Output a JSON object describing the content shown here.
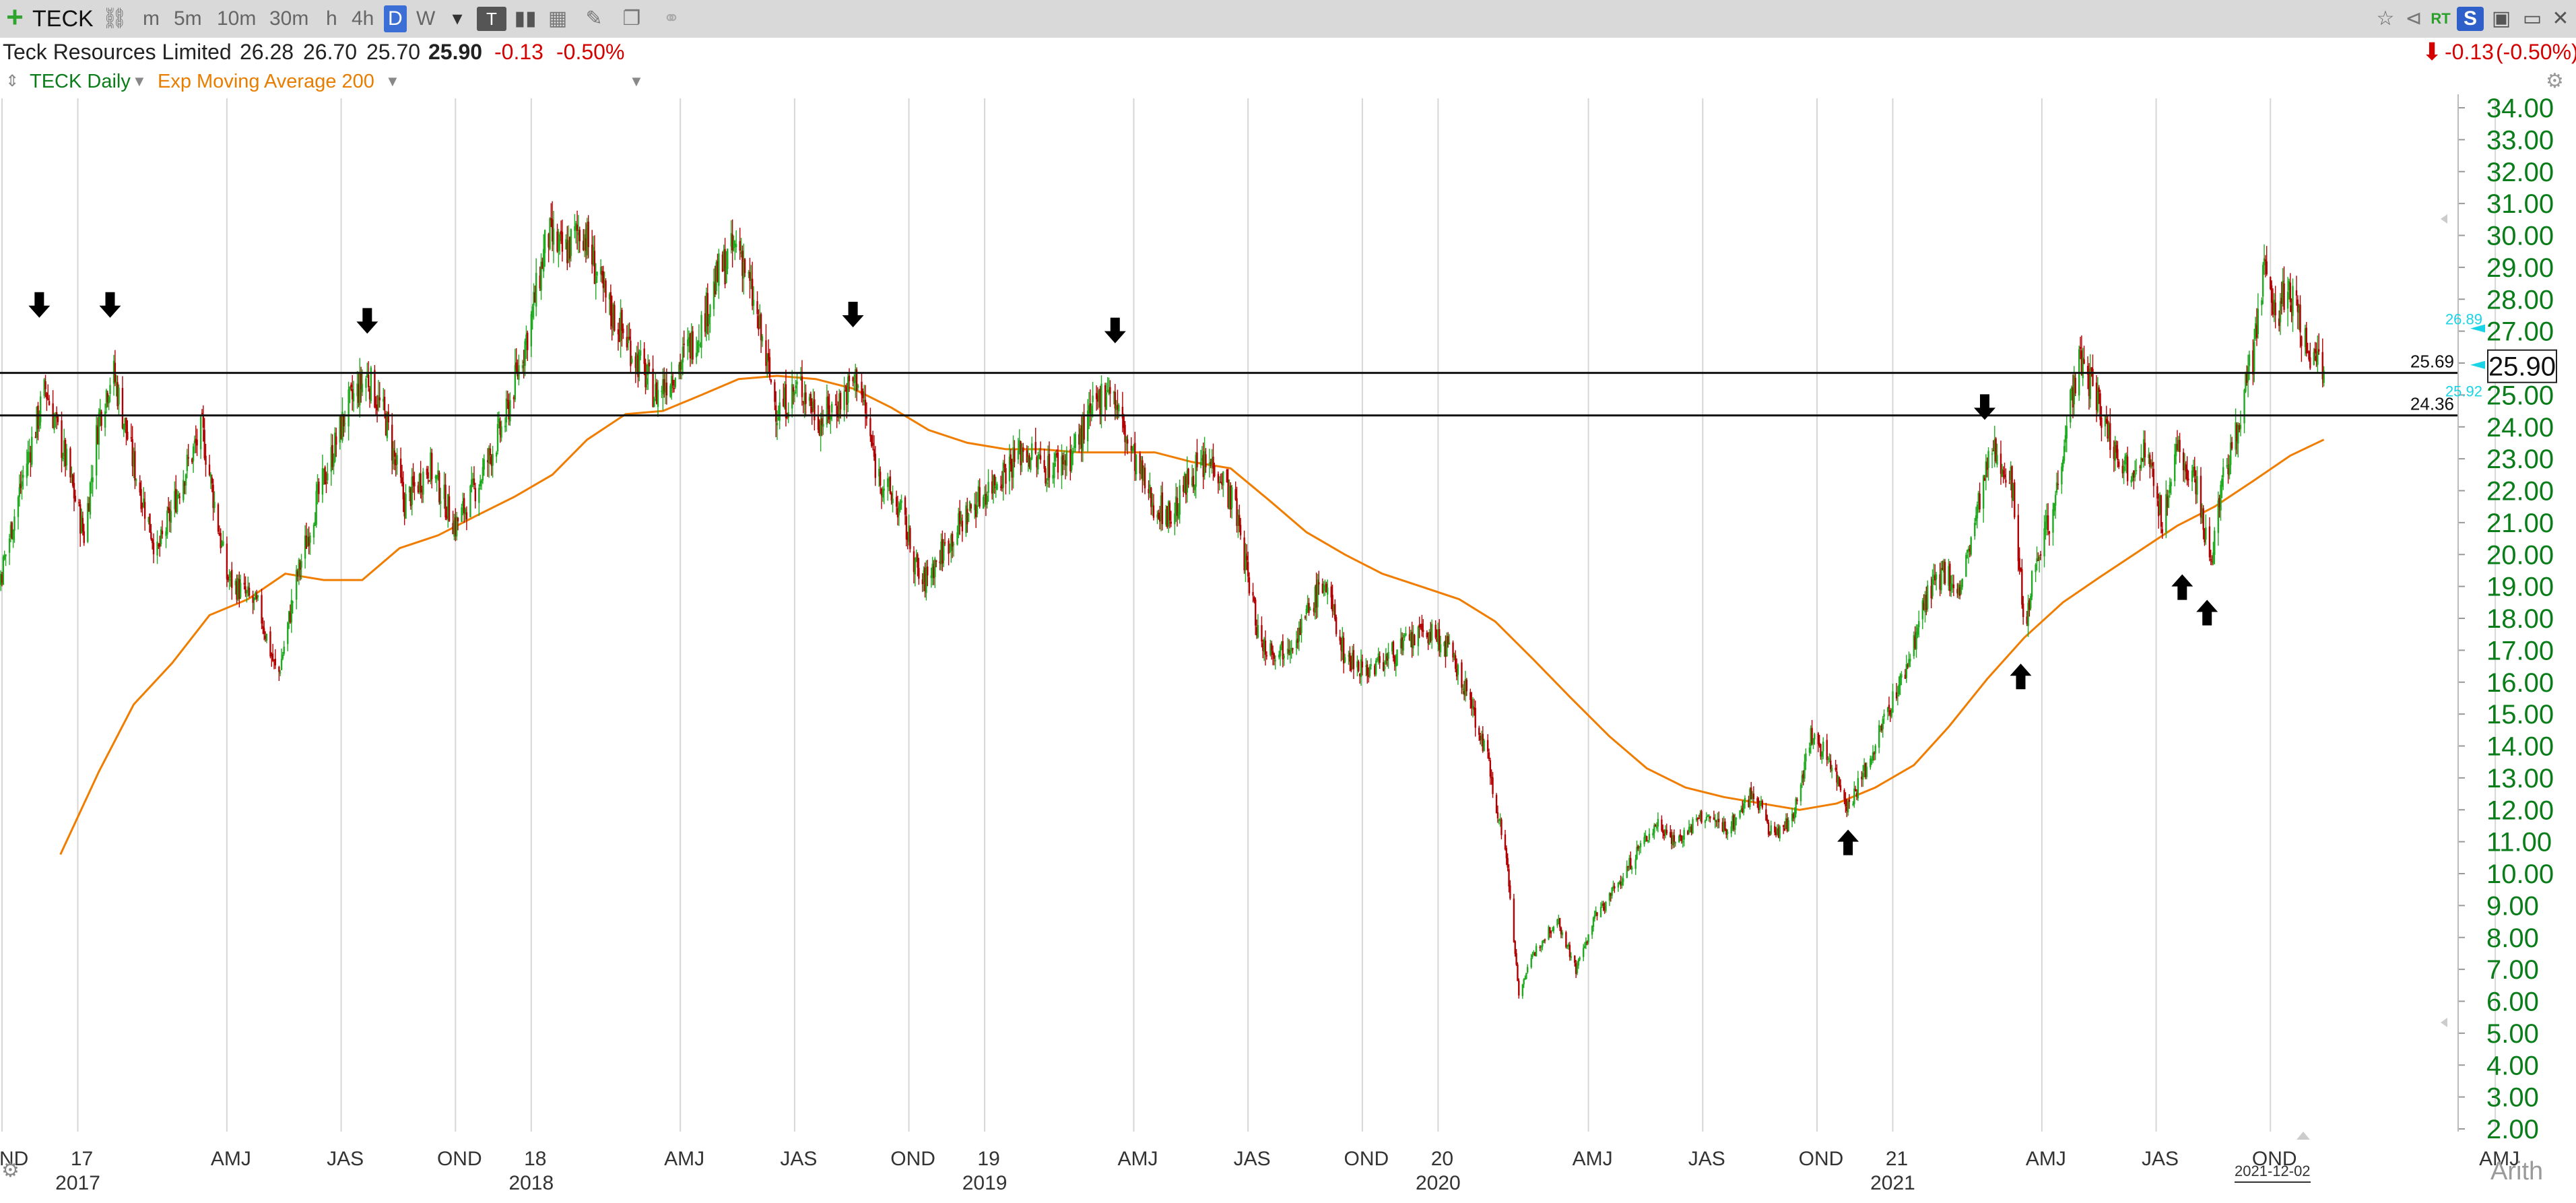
{
  "toolbar": {
    "symbol": "TECK",
    "intervals": [
      "m",
      "5m",
      "10m",
      "30m",
      "h",
      "4h",
      "D",
      "W"
    ],
    "active_interval": "D",
    "rt_label": "RT",
    "s_label": "S"
  },
  "quote": {
    "name": "Teck Resources Limited",
    "open": "26.28",
    "high": "26.70",
    "low": "25.70",
    "last": "25.90",
    "change": "-0.13",
    "change_pct": "-0.50%",
    "right_change": "-0.13",
    "right_change_pct": "(-0.50%)"
  },
  "studies": {
    "series_label": "TECK Daily",
    "study_label": "Exp Moving Average 200"
  },
  "footer": {
    "date_label": "2021-12-02",
    "scale_label": "Arith"
  },
  "colors": {
    "up": "#1faa1f",
    "down": "#b20000",
    "ema": "#f07d00",
    "axis_text": "#0a7d1a",
    "cyan": "#19d4e6"
  },
  "chart_data": {
    "type": "candlestick",
    "title": "TECK Daily",
    "y_axis": {
      "min": 2.0,
      "max": 34.0,
      "ticks": [
        "34.00",
        "33.00",
        "32.00",
        "31.00",
        "30.00",
        "29.00",
        "28.00",
        "27.00",
        "26.00",
        "25.00",
        "24.00",
        "23.00",
        "22.00",
        "21.00",
        "20.00",
        "19.00",
        "18.00",
        "17.00",
        "16.00",
        "15.00",
        "14.00",
        "13.00",
        "12.00",
        "11.00",
        "10.00",
        "9.00",
        "8.00",
        "7.00",
        "6.00",
        "5.00",
        "4.00",
        "3.00",
        "2.00"
      ],
      "scale": "linear"
    },
    "x_axis": {
      "start": "2016-10-01",
      "end": "2022-06-30",
      "month_ticks": [
        {
          "label": "OND",
          "date": "2016-11-15"
        },
        {
          "label": "17",
          "date": "2017-01-15"
        },
        {
          "label": "AMJ",
          "date": "2017-05-15"
        },
        {
          "label": "JAS",
          "date": "2017-08-15"
        },
        {
          "label": "OND",
          "date": "2017-11-15"
        },
        {
          "label": "18",
          "date": "2018-01-15"
        },
        {
          "label": "AMJ",
          "date": "2018-05-15"
        },
        {
          "label": "JAS",
          "date": "2018-08-15"
        },
        {
          "label": "OND",
          "date": "2018-11-15"
        },
        {
          "label": "19",
          "date": "2019-01-15"
        },
        {
          "label": "AMJ",
          "date": "2019-05-15"
        },
        {
          "label": "JAS",
          "date": "2019-08-15"
        },
        {
          "label": "OND",
          "date": "2019-11-15"
        },
        {
          "label": "20",
          "date": "2020-01-15"
        },
        {
          "label": "AMJ",
          "date": "2020-05-15"
        },
        {
          "label": "JAS",
          "date": "2020-08-15"
        },
        {
          "label": "OND",
          "date": "2020-11-15"
        },
        {
          "label": "21",
          "date": "2021-01-15"
        },
        {
          "label": "AMJ",
          "date": "2021-05-15"
        },
        {
          "label": "JAS",
          "date": "2021-08-15"
        },
        {
          "label": "OND",
          "date": "2021-11-15"
        },
        {
          "label": "AMJ",
          "date": "2022-05-15"
        }
      ],
      "year_labels": [
        {
          "label": "2017",
          "date": "2017-01-15"
        },
        {
          "label": "2018",
          "date": "2018-01-15"
        },
        {
          "label": "2019",
          "date": "2019-01-15"
        },
        {
          "label": "2020",
          "date": "2020-01-15"
        },
        {
          "label": "2021",
          "date": "2021-01-15"
        }
      ]
    },
    "price_path": [
      [
        "2016-10-01",
        16.2
      ],
      [
        "2016-10-25",
        17.4
      ],
      [
        "2016-11-15",
        19.5
      ],
      [
        "2016-12-01",
        22.3
      ],
      [
        "2016-12-20",
        25.2
      ],
      [
        "2017-01-05",
        23.0
      ],
      [
        "2017-01-20",
        20.6
      ],
      [
        "2017-02-01",
        24.3
      ],
      [
        "2017-02-12",
        25.8
      ],
      [
        "2017-03-01",
        22.8
      ],
      [
        "2017-03-20",
        20.0
      ],
      [
        "2017-04-10",
        22.5
      ],
      [
        "2017-04-25",
        23.9
      ],
      [
        "2017-05-15",
        19.3
      ],
      [
        "2017-06-10",
        18.3
      ],
      [
        "2017-06-25",
        16.1
      ],
      [
        "2017-07-10",
        19.2
      ],
      [
        "2017-07-25",
        21.5
      ],
      [
        "2017-08-20",
        24.6
      ],
      [
        "2017-09-05",
        25.6
      ],
      [
        "2017-09-20",
        24.2
      ],
      [
        "2017-10-05",
        21.6
      ],
      [
        "2017-10-25",
        22.8
      ],
      [
        "2017-11-15",
        20.9
      ],
      [
        "2017-12-05",
        22.4
      ],
      [
        "2017-12-25",
        24.2
      ],
      [
        "2018-01-15",
        27.4
      ],
      [
        "2018-01-28",
        30.0
      ],
      [
        "2018-02-10",
        29.4
      ],
      [
        "2018-02-25",
        30.3
      ],
      [
        "2018-03-15",
        28.0
      ],
      [
        "2018-04-05",
        26.5
      ],
      [
        "2018-04-25",
        25.0
      ],
      [
        "2018-05-15",
        26.0
      ],
      [
        "2018-06-01",
        27.2
      ],
      [
        "2018-06-15",
        28.8
      ],
      [
        "2018-07-01",
        29.8
      ],
      [
        "2018-07-15",
        27.5
      ],
      [
        "2018-08-01",
        24.5
      ],
      [
        "2018-08-20",
        25.3
      ],
      [
        "2018-09-05",
        24.2
      ],
      [
        "2018-09-20",
        24.8
      ],
      [
        "2018-10-05",
        25.6
      ],
      [
        "2018-10-20",
        22.6
      ],
      [
        "2018-11-10",
        21.2
      ],
      [
        "2018-11-25",
        19.0
      ],
      [
        "2018-12-15",
        20.3
      ],
      [
        "2019-01-05",
        21.5
      ],
      [
        "2019-01-25",
        22.4
      ],
      [
        "2019-02-15",
        23.3
      ],
      [
        "2019-03-05",
        22.7
      ],
      [
        "2019-03-25",
        23.1
      ],
      [
        "2019-04-10",
        24.3
      ],
      [
        "2019-04-25",
        25.4
      ],
      [
        "2019-05-10",
        23.5
      ],
      [
        "2019-05-30",
        21.6
      ],
      [
        "2019-06-15",
        21.2
      ],
      [
        "2019-07-01",
        22.6
      ],
      [
        "2019-07-20",
        22.9
      ],
      [
        "2019-08-05",
        21.4
      ],
      [
        "2019-08-25",
        17.2
      ],
      [
        "2019-09-10",
        17.0
      ],
      [
        "2019-09-25",
        17.6
      ],
      [
        "2019-10-15",
        19.2
      ],
      [
        "2019-11-01",
        16.8
      ],
      [
        "2019-11-20",
        16.4
      ],
      [
        "2019-12-10",
        16.9
      ],
      [
        "2020-01-05",
        17.6
      ],
      [
        "2020-01-22",
        17.1
      ],
      [
        "2020-02-10",
        15.4
      ],
      [
        "2020-02-25",
        13.4
      ],
      [
        "2020-03-10",
        10.5
      ],
      [
        "2020-03-20",
        6.3
      ],
      [
        "2020-04-05",
        7.8
      ],
      [
        "2020-04-20",
        8.6
      ],
      [
        "2020-05-05",
        7.0
      ],
      [
        "2020-05-20",
        8.6
      ],
      [
        "2020-06-10",
        9.8
      ],
      [
        "2020-06-25",
        10.8
      ],
      [
        "2020-07-10",
        11.6
      ],
      [
        "2020-07-25",
        11.0
      ],
      [
        "2020-08-15",
        11.8
      ],
      [
        "2020-09-05",
        11.4
      ],
      [
        "2020-09-25",
        12.6
      ],
      [
        "2020-10-10",
        11.2
      ],
      [
        "2020-10-25",
        11.6
      ],
      [
        "2020-11-10",
        14.3
      ],
      [
        "2020-11-25",
        13.6
      ],
      [
        "2020-12-10",
        12.1
      ],
      [
        "2020-12-25",
        13.3
      ],
      [
        "2021-01-10",
        15.0
      ],
      [
        "2021-01-25",
        16.3
      ],
      [
        "2021-02-10",
        18.5
      ],
      [
        "2021-02-25",
        19.5
      ],
      [
        "2021-03-10",
        18.8
      ],
      [
        "2021-03-25",
        21.5
      ],
      [
        "2021-04-05",
        23.2
      ],
      [
        "2021-04-20",
        22.6
      ],
      [
        "2021-05-01",
        17.8
      ],
      [
        "2021-05-12",
        20.2
      ],
      [
        "2021-05-25",
        21.5
      ],
      [
        "2021-06-05",
        24.5
      ],
      [
        "2021-06-15",
        26.0
      ],
      [
        "2021-06-25",
        25.2
      ],
      [
        "2021-07-10",
        23.5
      ],
      [
        "2021-07-25",
        22.6
      ],
      [
        "2021-08-05",
        23.4
      ],
      [
        "2021-08-20",
        21.1
      ],
      [
        "2021-09-01",
        23.2
      ],
      [
        "2021-09-15",
        22.5
      ],
      [
        "2021-09-28",
        19.7
      ],
      [
        "2021-10-05",
        21.8
      ],
      [
        "2021-10-20",
        24.2
      ],
      [
        "2021-11-01",
        26.2
      ],
      [
        "2021-11-10",
        28.8
      ],
      [
        "2021-11-20",
        27.6
      ],
      [
        "2021-12-01",
        28.4
      ],
      [
        "2021-12-10",
        26.8
      ],
      [
        "2021-12-20",
        26.2
      ],
      [
        "2021-12-28",
        25.9
      ]
    ],
    "ema_200": [
      [
        "2017-01-01",
        10.6
      ],
      [
        "2017-02-01",
        13.2
      ],
      [
        "2017-03-01",
        15.3
      ],
      [
        "2017-04-01",
        16.6
      ],
      [
        "2017-05-01",
        18.1
      ],
      [
        "2017-06-01",
        18.6
      ],
      [
        "2017-07-01",
        19.4
      ],
      [
        "2017-08-01",
        19.2
      ],
      [
        "2017-09-01",
        19.2
      ],
      [
        "2017-10-01",
        20.2
      ],
      [
        "2017-11-01",
        20.6
      ],
      [
        "2017-12-01",
        21.2
      ],
      [
        "2018-01-01",
        21.8
      ],
      [
        "2018-02-01",
        22.5
      ],
      [
        "2018-03-01",
        23.6
      ],
      [
        "2018-04-01",
        24.4
      ],
      [
        "2018-05-01",
        24.5
      ],
      [
        "2018-06-01",
        25.0
      ],
      [
        "2018-07-01",
        25.5
      ],
      [
        "2018-08-01",
        25.6
      ],
      [
        "2018-09-01",
        25.5
      ],
      [
        "2018-10-01",
        25.2
      ],
      [
        "2018-11-01",
        24.6
      ],
      [
        "2018-12-01",
        23.9
      ],
      [
        "2019-01-01",
        23.5
      ],
      [
        "2019-02-01",
        23.3
      ],
      [
        "2019-03-01",
        23.3
      ],
      [
        "2019-04-01",
        23.2
      ],
      [
        "2019-05-01",
        23.2
      ],
      [
        "2019-06-01",
        23.2
      ],
      [
        "2019-07-01",
        22.9
      ],
      [
        "2019-08-01",
        22.7
      ],
      [
        "2019-09-01",
        21.7
      ],
      [
        "2019-10-01",
        20.7
      ],
      [
        "2019-11-01",
        20.0
      ],
      [
        "2019-12-01",
        19.4
      ],
      [
        "2020-01-01",
        19.0
      ],
      [
        "2020-02-01",
        18.6
      ],
      [
        "2020-03-01",
        17.9
      ],
      [
        "2020-04-01",
        16.7
      ],
      [
        "2020-05-01",
        15.5
      ],
      [
        "2020-06-01",
        14.3
      ],
      [
        "2020-07-01",
        13.3
      ],
      [
        "2020-08-01",
        12.7
      ],
      [
        "2020-09-01",
        12.4
      ],
      [
        "2020-10-01",
        12.2
      ],
      [
        "2020-11-01",
        12.0
      ],
      [
        "2020-12-01",
        12.2
      ],
      [
        "2021-01-01",
        12.7
      ],
      [
        "2021-02-01",
        13.4
      ],
      [
        "2021-03-01",
        14.6
      ],
      [
        "2021-04-01",
        16.1
      ],
      [
        "2021-05-01",
        17.4
      ],
      [
        "2021-06-01",
        18.5
      ],
      [
        "2021-07-01",
        19.3
      ],
      [
        "2021-08-01",
        20.1
      ],
      [
        "2021-09-01",
        20.9
      ],
      [
        "2021-10-01",
        21.5
      ],
      [
        "2021-11-01",
        22.3
      ],
      [
        "2021-12-01",
        23.1
      ],
      [
        "2021-12-28",
        23.6
      ]
    ],
    "horizontal_lines": [
      {
        "value": 25.69,
        "label": "25.69"
      },
      {
        "value": 24.36,
        "label": "24.36"
      }
    ],
    "arrows": [
      {
        "date": "2016-12-15",
        "price": 27.8,
        "direction": "down"
      },
      {
        "date": "2017-02-10",
        "price": 27.8,
        "direction": "down"
      },
      {
        "date": "2017-09-05",
        "price": 27.3,
        "direction": "down"
      },
      {
        "date": "2018-10-01",
        "price": 27.5,
        "direction": "down"
      },
      {
        "date": "2019-04-30",
        "price": 27.0,
        "direction": "down"
      },
      {
        "date": "2021-03-30",
        "price": 24.6,
        "direction": "down"
      },
      {
        "date": "2020-12-10",
        "price": 11.0,
        "direction": "up"
      },
      {
        "date": "2021-04-28",
        "price": 16.2,
        "direction": "up"
      },
      {
        "date": "2021-09-05",
        "price": 19.0,
        "direction": "up"
      },
      {
        "date": "2021-09-25",
        "price": 18.2,
        "direction": "up"
      }
    ],
    "last_price_label": "25.90",
    "cyan_labels": [
      "26.89",
      "25.92"
    ]
  }
}
